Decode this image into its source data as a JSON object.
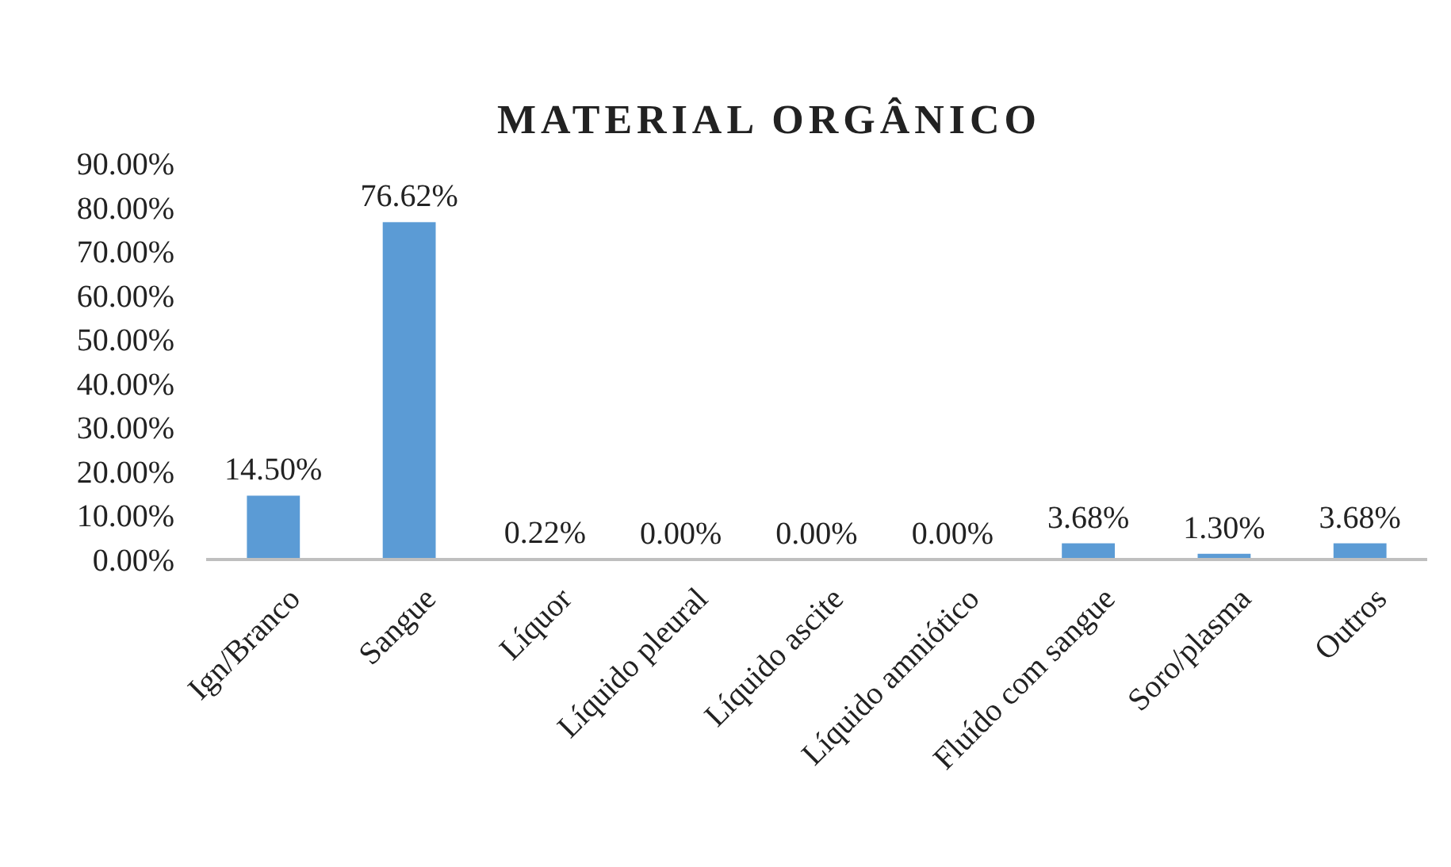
{
  "chart_data": {
    "type": "bar",
    "title": "MATERIAL ORGÂNICO",
    "categories": [
      "Ign/Branco",
      "Sangue",
      "Líquor",
      "Líquido pleural",
      "Líquido ascite",
      "Líquido amniótico",
      "Fluído com sangue",
      "Soro/plasma",
      "Outros"
    ],
    "values": [
      14.5,
      76.62,
      0.22,
      0,
      0,
      0,
      3.68,
      1.3,
      3.68
    ],
    "value_labels": [
      "14.50%",
      "76.62%",
      "0.22%",
      "0.00%",
      "0.00%",
      "0.00%",
      "3.68%",
      "1.30%",
      "3.68%"
    ],
    "color": "#5b9bd5",
    "ylim": [
      0,
      90
    ],
    "yticks": [
      {
        "value": 0,
        "label": "0.00%"
      },
      {
        "value": 10,
        "label": "10.00%"
      },
      {
        "value": 20,
        "label": "20.00%"
      },
      {
        "value": 30,
        "label": "30.00%"
      },
      {
        "value": 40,
        "label": "40.00%"
      },
      {
        "value": 50,
        "label": "50.00%"
      },
      {
        "value": 60,
        "label": "60.00%"
      },
      {
        "value": 70,
        "label": "70.00%"
      },
      {
        "value": 80,
        "label": "80.00%"
      },
      {
        "value": 90,
        "label": "90.00%"
      }
    ],
    "grid": false
  }
}
